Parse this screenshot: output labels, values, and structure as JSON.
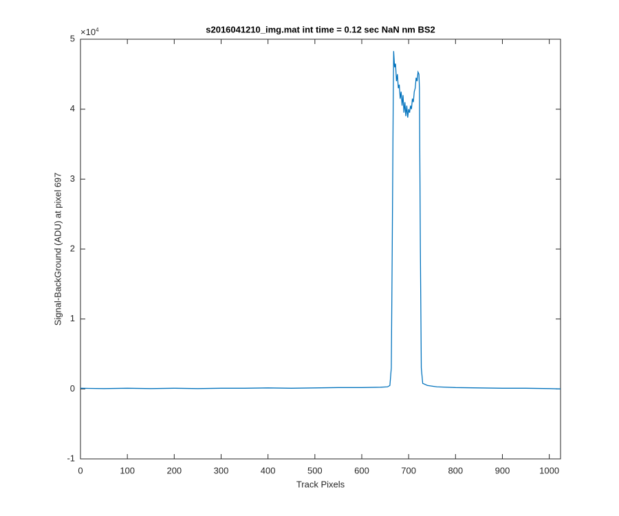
{
  "chart_data": {
    "type": "line",
    "title": "s2016041210_img.mat int time = 0.12 sec  NaN nm BS2",
    "x_label": "Track Pixels",
    "y_label": "Signal-BackGround (ADU) at pixel 697",
    "y_multiplier": {
      "base": "×10",
      "exponent": "4"
    },
    "xlim": [
      0,
      1024
    ],
    "ylim": [
      -1,
      5
    ],
    "xticks": [
      0,
      100,
      200,
      300,
      400,
      500,
      600,
      700,
      800,
      900,
      1000
    ],
    "yticks": [
      -1,
      0,
      1,
      2,
      3,
      4,
      5
    ],
    "grid": false,
    "x": [
      0,
      50,
      100,
      150,
      200,
      250,
      300,
      350,
      400,
      450,
      500,
      550,
      600,
      640,
      655,
      660,
      663,
      665,
      667,
      668,
      670,
      672,
      674,
      676,
      678,
      680,
      682,
      684,
      686,
      688,
      690,
      692,
      694,
      696,
      698,
      700,
      702,
      704,
      706,
      708,
      710,
      712,
      714,
      716,
      718,
      720,
      722,
      723,
      725,
      727,
      730,
      740,
      760,
      800,
      850,
      900,
      950,
      1000,
      1024
    ],
    "series": [
      {
        "color": "#0072bd",
        "values": [
          0.01,
          0.005,
          0.01,
          0.005,
          0.01,
          0.005,
          0.01,
          0.01,
          0.015,
          0.01,
          0.015,
          0.02,
          0.02,
          0.025,
          0.03,
          0.05,
          0.3,
          2.0,
          4.0,
          4.83,
          4.6,
          4.65,
          4.4,
          4.5,
          4.3,
          4.35,
          4.15,
          4.25,
          4.05,
          4.2,
          3.95,
          4.1,
          3.9,
          4.05,
          3.88,
          4.0,
          3.95,
          4.05,
          4.0,
          4.15,
          4.1,
          4.25,
          4.3,
          4.45,
          4.4,
          4.53,
          4.5,
          4.3,
          2.0,
          0.3,
          0.08,
          0.05,
          0.03,
          0.02,
          0.015,
          0.01,
          0.01,
          0.005,
          0.0
        ]
      }
    ]
  }
}
